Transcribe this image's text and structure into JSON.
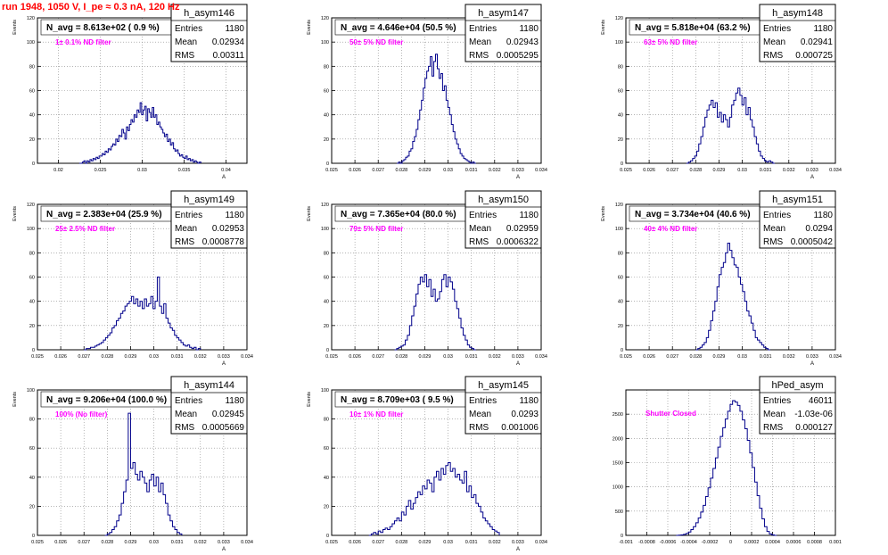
{
  "page": {
    "run_title": "run 1948,  1050 V, I_pe ≈ 0.3 nA, 120 Hz"
  },
  "colors": {
    "histogram": "#00008b",
    "frame": "#000000",
    "grid": "#888888",
    "navg": "#000000",
    "filter_label": "#ff00ff",
    "run_title": "#ff0000"
  },
  "stats_labels": {
    "entries": "Entries",
    "mean": "Mean",
    "rms": "RMS"
  },
  "chart_data": [
    {
      "type": "histogram",
      "name": "h_asym146",
      "ylabel": "Events",
      "xlabel": "A",
      "navg": "N_avg = 8.613e+02 ( 0.9 %)",
      "filter": "1± 0.1% ND filter",
      "entries": "1180",
      "mean": "0.02934",
      "rms": "0.00311",
      "xlim": [
        0.0175,
        0.0425
      ],
      "ylim": [
        0,
        120
      ],
      "xticks": [
        "0.02",
        "0.025",
        "0.03",
        "0.035",
        "0.04"
      ],
      "xtick_values": [
        0.02,
        0.025,
        0.03,
        0.035,
        0.04
      ],
      "yticks": [
        "0",
        "20",
        "40",
        "60",
        "80",
        "100",
        "120"
      ],
      "ytick_values": [
        0,
        20,
        40,
        60,
        80,
        100,
        120
      ],
      "xmin": 0.0225,
      "xmax": 0.037,
      "values": [
        0,
        0,
        1,
        2,
        0,
        2,
        1,
        3,
        2,
        4,
        3,
        5,
        4,
        6,
        6,
        8,
        7,
        10,
        9,
        12,
        11,
        14,
        16,
        15,
        20,
        18,
        23,
        22,
        28,
        25,
        20,
        30,
        27,
        32,
        36,
        34,
        40,
        38,
        44,
        42,
        50,
        40,
        44,
        47,
        35,
        45,
        42,
        38,
        46,
        38,
        40,
        32,
        34,
        30,
        28,
        25,
        22,
        24,
        18,
        20,
        15,
        17,
        12,
        10,
        11,
        8,
        6,
        7,
        5,
        4,
        6,
        3,
        4,
        2,
        3,
        1,
        2,
        1,
        0,
        1
      ]
    },
    {
      "type": "histogram",
      "name": "h_asym147",
      "ylabel": "Events",
      "xlabel": "A",
      "navg": "N_avg = 4.646e+04 (50.5 %)",
      "filter": "50± 5% ND filter",
      "entries": "1180",
      "mean": "0.02943",
      "rms": "0.0005295",
      "xlim": [
        0.025,
        0.034
      ],
      "ylim": [
        0,
        120
      ],
      "xticks": [
        "0.025",
        "0.026",
        "0.027",
        "0.028",
        "0.029",
        "0.03",
        "0.031",
        "0.032",
        "0.033",
        "0.034"
      ],
      "xtick_values": [
        0.025,
        0.026,
        0.027,
        0.028,
        0.029,
        0.03,
        0.031,
        0.032,
        0.033,
        0.034
      ],
      "yticks": [
        "0",
        "20",
        "40",
        "60",
        "80",
        "100",
        "120"
      ],
      "ytick_values": [
        0,
        20,
        40,
        60,
        80,
        100,
        120
      ],
      "xmin": 0.0278,
      "xmax": 0.0312,
      "values": [
        0,
        1,
        0,
        2,
        3,
        5,
        6,
        10,
        12,
        18,
        22,
        28,
        36,
        44,
        52,
        62,
        70,
        76,
        80,
        88,
        72,
        84,
        90,
        78,
        70,
        74,
        60,
        64,
        52,
        46,
        40,
        32,
        26,
        20,
        16,
        12,
        8,
        6,
        4,
        3,
        2,
        1,
        0,
        1,
        0
      ]
    },
    {
      "type": "histogram",
      "name": "h_asym148",
      "ylabel": "Events",
      "xlabel": "A",
      "navg": "N_avg = 5.818e+04 (63.2 %)",
      "filter": "63± 5% ND filter",
      "entries": "1180",
      "mean": "0.02941",
      "rms": "0.000725",
      "xlim": [
        0.025,
        0.034
      ],
      "ylim": [
        0,
        120
      ],
      "xticks": [
        "0.025",
        "0.026",
        "0.027",
        "0.028",
        "0.029",
        "0.03",
        "0.031",
        "0.032",
        "0.033",
        "0.034"
      ],
      "xtick_values": [
        0.025,
        0.026,
        0.027,
        0.028,
        0.029,
        0.03,
        0.031,
        0.032,
        0.033,
        0.034
      ],
      "yticks": [
        "0",
        "20",
        "40",
        "60",
        "80",
        "100",
        "120"
      ],
      "ytick_values": [
        0,
        20,
        40,
        60,
        80,
        100,
        120
      ],
      "xmin": 0.0276,
      "xmax": 0.0314,
      "values": [
        0,
        1,
        2,
        4,
        6,
        10,
        16,
        22,
        30,
        38,
        44,
        48,
        52,
        46,
        50,
        38,
        42,
        34,
        40,
        36,
        30,
        38,
        48,
        52,
        58,
        62,
        56,
        48,
        54,
        40,
        46,
        36,
        30,
        22,
        16,
        10,
        6,
        4,
        2,
        1,
        2,
        1,
        0
      ]
    },
    {
      "type": "histogram",
      "name": "h_asym149",
      "ylabel": "Events",
      "xlabel": "A",
      "navg": "N_avg = 2.383e+04 (25.9 %)",
      "filter": "25± 2.5% ND filter",
      "entries": "1180",
      "mean": "0.02953",
      "rms": "0.0008778",
      "xlim": [
        0.025,
        0.034
      ],
      "ylim": [
        0,
        120
      ],
      "xticks": [
        "0.025",
        "0.026",
        "0.027",
        "0.028",
        "0.029",
        "0.03",
        "0.031",
        "0.032",
        "0.033",
        "0.034"
      ],
      "xtick_values": [
        0.025,
        0.026,
        0.027,
        0.028,
        0.029,
        0.03,
        0.031,
        0.032,
        0.033,
        0.034
      ],
      "yticks": [
        "0",
        "20",
        "40",
        "60",
        "80",
        "100",
        "120"
      ],
      "ytick_values": [
        0,
        20,
        40,
        60,
        80,
        100,
        120
      ],
      "xmin": 0.027,
      "xmax": 0.032,
      "values": [
        0,
        1,
        1,
        2,
        2,
        3,
        4,
        5,
        6,
        8,
        10,
        12,
        14,
        18,
        20,
        24,
        26,
        30,
        32,
        36,
        38,
        40,
        44,
        38,
        42,
        36,
        40,
        34,
        42,
        36,
        38,
        44,
        34,
        40,
        60,
        36,
        30,
        38,
        26,
        22,
        18,
        16,
        12,
        10,
        8,
        6,
        4,
        3,
        4,
        2,
        1,
        2,
        0,
        1
      ]
    },
    {
      "type": "histogram",
      "name": "h_asym150",
      "ylabel": "Events",
      "xlabel": "A",
      "navg": "N_avg = 7.365e+04 (80.0 %)",
      "filter": "79± 5% ND filter",
      "entries": "1180",
      "mean": "0.02959",
      "rms": "0.0006322",
      "xlim": [
        0.025,
        0.034
      ],
      "ylim": [
        0,
        120
      ],
      "xticks": [
        "0.025",
        "0.026",
        "0.027",
        "0.028",
        "0.029",
        "0.03",
        "0.031",
        "0.032",
        "0.033",
        "0.034"
      ],
      "xtick_values": [
        0.025,
        0.026,
        0.027,
        0.028,
        0.029,
        0.03,
        0.031,
        0.032,
        0.033,
        0.034
      ],
      "yticks": [
        "0",
        "20",
        "40",
        "60",
        "80",
        "100",
        "120"
      ],
      "ytick_values": [
        0,
        20,
        40,
        60,
        80,
        100,
        120
      ],
      "xmin": 0.0277,
      "xmax": 0.0312,
      "values": [
        0,
        1,
        2,
        3,
        4,
        8,
        12,
        20,
        28,
        36,
        46,
        54,
        60,
        56,
        62,
        52,
        58,
        44,
        50,
        40,
        42,
        48,
        58,
        62,
        52,
        60,
        56,
        50,
        40,
        34,
        26,
        18,
        12,
        8,
        4,
        2,
        1,
        0
      ]
    },
    {
      "type": "histogram",
      "name": "h_asym151",
      "ylabel": "Events",
      "xlabel": "A",
      "navg": "N_avg = 3.734e+04 (40.6 %)",
      "filter": "40± 4% ND filter",
      "entries": "1180",
      "mean": "0.0294",
      "rms": "0.0005042",
      "xlim": [
        0.025,
        0.034
      ],
      "ylim": [
        0,
        120
      ],
      "xticks": [
        "0.025",
        "0.026",
        "0.027",
        "0.028",
        "0.029",
        "0.03",
        "0.031",
        "0.032",
        "0.033",
        "0.034"
      ],
      "xtick_values": [
        0.025,
        0.026,
        0.027,
        0.028,
        0.029,
        0.03,
        0.031,
        0.032,
        0.033,
        0.034
      ],
      "yticks": [
        "0",
        "20",
        "40",
        "60",
        "80",
        "100",
        "120"
      ],
      "ytick_values": [
        0,
        20,
        40,
        60,
        80,
        100,
        120
      ],
      "xmin": 0.028,
      "xmax": 0.0312,
      "values": [
        0,
        1,
        2,
        4,
        6,
        10,
        16,
        24,
        32,
        40,
        52,
        62,
        68,
        72,
        80,
        88,
        82,
        76,
        70,
        68,
        60,
        54,
        48,
        40,
        32,
        28,
        22,
        16,
        10,
        8,
        6,
        4,
        2,
        1,
        0
      ]
    },
    {
      "type": "histogram",
      "name": "h_asym144",
      "ylabel": "Events",
      "xlabel": "A",
      "navg": "N_avg = 9.206e+04 (100.0 %)",
      "filter": "100% (No filter)",
      "entries": "1180",
      "mean": "0.02945",
      "rms": "0.0005669",
      "xlim": [
        0.025,
        0.034
      ],
      "ylim": [
        0,
        100
      ],
      "xticks": [
        "0.025",
        "0.026",
        "0.027",
        "0.028",
        "0.029",
        "0.03",
        "0.031",
        "0.032",
        "0.033",
        "0.034"
      ],
      "xtick_values": [
        0.025,
        0.026,
        0.027,
        0.028,
        0.029,
        0.03,
        0.031,
        0.032,
        0.033,
        0.034
      ],
      "yticks": [
        "0",
        "20",
        "40",
        "60",
        "80",
        "100"
      ],
      "ytick_values": [
        0,
        20,
        40,
        60,
        80,
        100
      ],
      "xmin": 0.0279,
      "xmax": 0.0312,
      "values": [
        0,
        1,
        2,
        4,
        6,
        10,
        14,
        22,
        30,
        38,
        84,
        46,
        50,
        42,
        38,
        44,
        40,
        36,
        30,
        38,
        42,
        34,
        40,
        30,
        36,
        28,
        22,
        14,
        10,
        6,
        4,
        2,
        1
      ]
    },
    {
      "type": "histogram",
      "name": "h_asym145",
      "ylabel": "Events",
      "xlabel": "A",
      "navg": "N_avg = 8.709e+03 ( 9.5 %)",
      "filter": "10± 1% ND filter",
      "entries": "1180",
      "mean": "0.0293",
      "rms": "0.001006",
      "xlim": [
        0.025,
        0.034
      ],
      "ylim": [
        0,
        100
      ],
      "xticks": [
        "0.025",
        "0.026",
        "0.027",
        "0.028",
        "0.029",
        "0.03",
        "0.031",
        "0.032",
        "0.033",
        "0.034"
      ],
      "xtick_values": [
        0.025,
        0.026,
        0.027,
        0.028,
        0.029,
        0.03,
        0.031,
        0.032,
        0.033,
        0.034
      ],
      "yticks": [
        "0",
        "20",
        "40",
        "60",
        "80",
        "100"
      ],
      "ytick_values": [
        0,
        20,
        40,
        60,
        80,
        100
      ],
      "xmin": 0.0266,
      "xmax": 0.0322,
      "values": [
        0,
        1,
        2,
        1,
        3,
        2,
        4,
        5,
        4,
        6,
        8,
        10,
        12,
        10,
        16,
        14,
        20,
        24,
        18,
        22,
        26,
        30,
        28,
        34,
        32,
        38,
        36,
        30,
        40,
        44,
        38,
        46,
        42,
        48,
        50,
        44,
        46,
        40,
        42,
        38,
        36,
        44,
        30,
        34,
        26,
        28,
        22,
        20,
        16,
        12,
        10,
        8,
        6,
        4,
        3,
        2
      ]
    },
    {
      "type": "histogram",
      "name": "hPed_asym",
      "ylabel": "",
      "xlabel": "",
      "navg": "",
      "filter": "Shutter Closed",
      "entries": "46011",
      "mean": "-1.03e-06",
      "rms": "0.000127",
      "xlim": [
        -0.001,
        0.001
      ],
      "ylim": [
        0,
        3000
      ],
      "xticks": [
        "-0.001",
        "-0.0008",
        "-0.0006",
        "-0.0004",
        "-0.0002",
        "0",
        "0.0002",
        "0.0004",
        "0.0006",
        "0.0008",
        "0.001"
      ],
      "xtick_values": [
        -0.001,
        -0.0008,
        -0.0006,
        -0.0004,
        -0.0002,
        0,
        0.0002,
        0.0004,
        0.0006,
        0.0008,
        0.001
      ],
      "yticks": [
        "0",
        "500",
        "1000",
        "1500",
        "2000",
        "2500"
      ],
      "ytick_values": [
        0,
        500,
        1000,
        1500,
        2000,
        2500
      ],
      "xmin": -0.00052,
      "xmax": 0.00044,
      "values": [
        0,
        5,
        10,
        20,
        40,
        70,
        120,
        180,
        260,
        360,
        480,
        620,
        800,
        980,
        1180,
        1380,
        1600,
        1820,
        2040,
        2220,
        2400,
        2560,
        2700,
        2780,
        2750,
        2680,
        2560,
        2380,
        2200,
        1960,
        1700,
        1400,
        1100,
        820,
        560,
        340,
        180,
        80,
        30,
        10,
        0
      ]
    }
  ]
}
